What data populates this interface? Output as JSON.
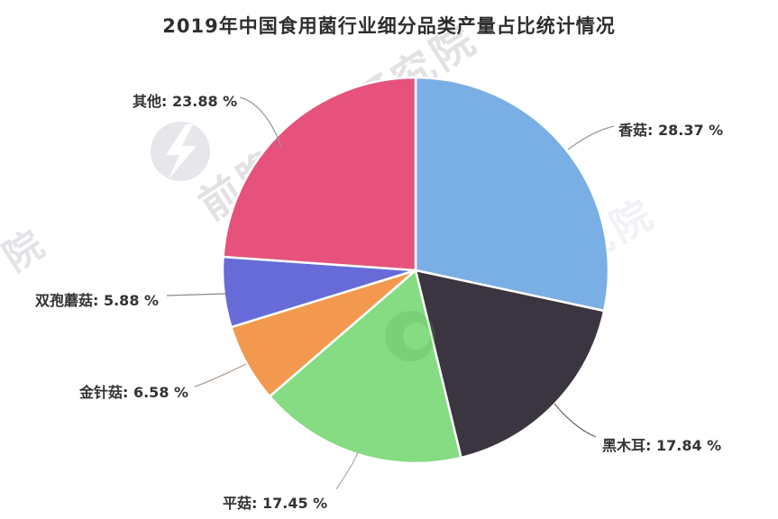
{
  "watermark": {
    "brand_text": "前瞻产业研究院",
    "side_text": "产业研究院",
    "edge_text": "院",
    "logo": "qianzhan-circle-logo"
  },
  "chart_data": {
    "type": "pie",
    "title": "2019年中国食用菌行业细分品类产量占比统计情况",
    "unit": "percent",
    "start_angle_deg": 0,
    "direction": "clockwise",
    "legend_position": "none",
    "label_style": "callout-lines",
    "slices": [
      {
        "key": "shiitake",
        "label": "香菇",
        "value": 28.37,
        "display": "香菇: 28.37 %",
        "color": "#7aafe5"
      },
      {
        "key": "black-fungus",
        "label": "黑木耳",
        "value": 17.84,
        "display": "黑木耳: 17.84 %",
        "color": "#3a3540"
      },
      {
        "key": "oyster",
        "label": "平菇",
        "value": 17.45,
        "display": "平菇: 17.45 %",
        "color": "#85dc82"
      },
      {
        "key": "enoki",
        "label": "金针菇",
        "value": 6.58,
        "display": "金针菇: 6.58 %",
        "color": "#f2994f"
      },
      {
        "key": "button-mushroom",
        "label": "双孢蘑菇",
        "value": 5.88,
        "display": "双孢蘑菇: 5.88 %",
        "color": "#666bd8"
      },
      {
        "key": "other",
        "label": "其他",
        "value": 23.88,
        "display": "其他: 23.88 %",
        "color": "#e6527c"
      }
    ]
  }
}
